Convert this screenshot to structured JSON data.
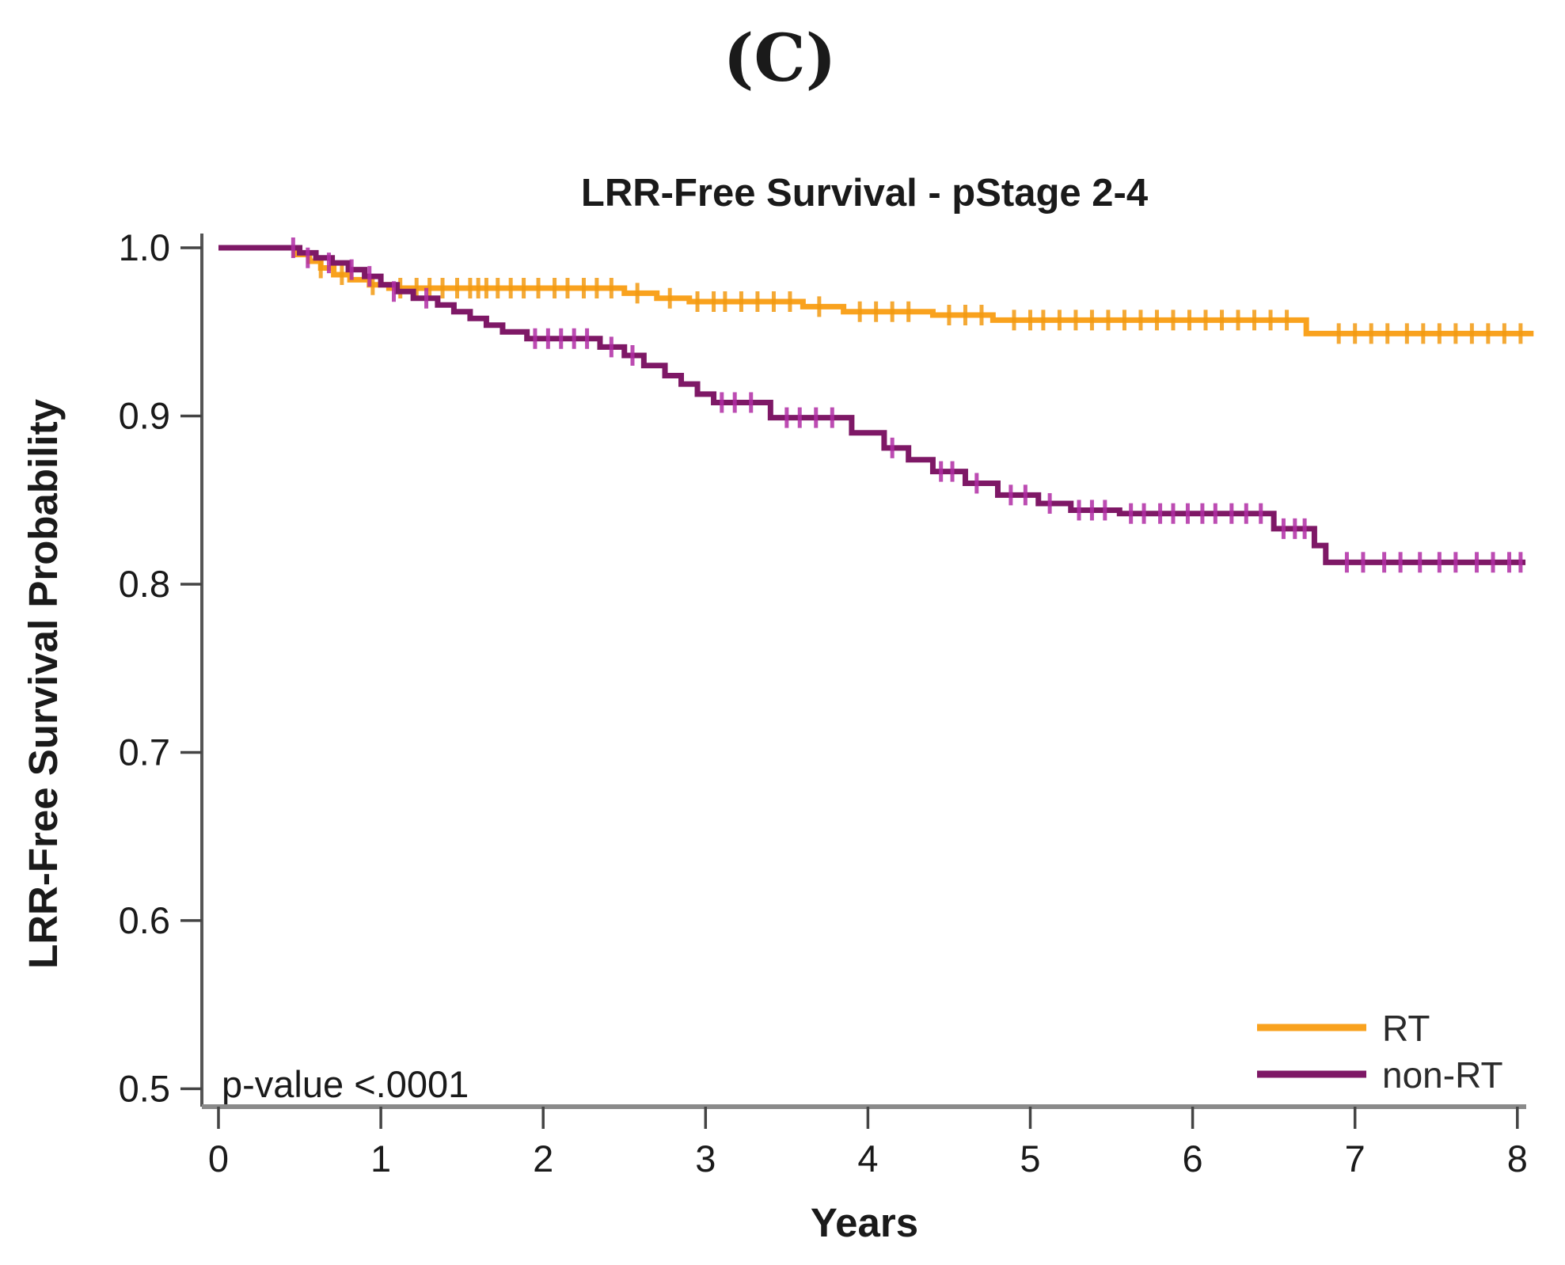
{
  "panel_label": "(C)",
  "annotation": {
    "p_value": "p-value <.0001"
  },
  "legend": [
    {
      "label": "RT",
      "color": "#F9A21E"
    },
    {
      "label": "non-RT",
      "color": "#7E1866"
    }
  ],
  "colors": {
    "rt_line": "#F9A21E",
    "rt_censor": "#F29A12",
    "nonrt_line": "#7E1866",
    "nonrt_censor": "#B02DA4",
    "axis_x": "#8a8a8a",
    "axis_y": "#555555",
    "tick": "#444444",
    "text": "#1a1a1a"
  },
  "chart_data": {
    "type": "line",
    "subtype": "kaplan-meier-step",
    "title": "LRR-Free Survival - pStage 2-4",
    "xlabel": "Years",
    "ylabel": "LRR-Free Survival Probability",
    "xlim": [
      0,
      8
    ],
    "ylim": [
      0.5,
      1.0
    ],
    "grid": false,
    "legend_position": "bottom-right-inside",
    "xticks": [
      0,
      1,
      2,
      3,
      4,
      5,
      6,
      7,
      8
    ],
    "yticks": [
      [
        "1.0",
        1.0
      ],
      [
        "0.9",
        0.9
      ],
      [
        "0.8",
        0.8
      ],
      [
        "0.7",
        0.7
      ],
      [
        "0.6",
        0.6
      ],
      [
        "0.5",
        0.5
      ]
    ],
    "series": [
      {
        "name": "RT",
        "color": "#F9A21E",
        "censor_color": "#F29A12",
        "start": 1.0,
        "end_t": 8.1,
        "steps": [
          [
            0.47,
            0.996
          ],
          [
            0.56,
            0.992
          ],
          [
            0.63,
            0.988
          ],
          [
            0.71,
            0.984
          ],
          [
            0.81,
            0.981
          ],
          [
            0.93,
            0.978
          ],
          [
            1.05,
            0.976
          ],
          [
            2.5,
            0.973
          ],
          [
            2.7,
            0.97
          ],
          [
            2.9,
            0.968
          ],
          [
            3.6,
            0.965
          ],
          [
            3.85,
            0.962
          ],
          [
            4.4,
            0.96
          ],
          [
            4.77,
            0.957
          ],
          [
            6.7,
            0.949
          ]
        ],
        "censors": [
          [
            0.63,
            0.988
          ],
          [
            0.76,
            0.984
          ],
          [
            0.95,
            0.978
          ],
          [
            1.12,
            0.976
          ],
          [
            1.22,
            0.976
          ],
          [
            1.3,
            0.976
          ],
          [
            1.38,
            0.976
          ],
          [
            1.47,
            0.976
          ],
          [
            1.55,
            0.976
          ],
          [
            1.6,
            0.976
          ],
          [
            1.65,
            0.976
          ],
          [
            1.72,
            0.976
          ],
          [
            1.8,
            0.976
          ],
          [
            1.88,
            0.976
          ],
          [
            1.97,
            0.976
          ],
          [
            2.07,
            0.976
          ],
          [
            2.15,
            0.976
          ],
          [
            2.25,
            0.976
          ],
          [
            2.33,
            0.976
          ],
          [
            2.42,
            0.976
          ],
          [
            2.58,
            0.973
          ],
          [
            2.78,
            0.97
          ],
          [
            2.95,
            0.968
          ],
          [
            3.05,
            0.968
          ],
          [
            3.12,
            0.968
          ],
          [
            3.22,
            0.968
          ],
          [
            3.32,
            0.968
          ],
          [
            3.42,
            0.968
          ],
          [
            3.52,
            0.968
          ],
          [
            3.7,
            0.965
          ],
          [
            3.95,
            0.962
          ],
          [
            4.05,
            0.962
          ],
          [
            4.15,
            0.962
          ],
          [
            4.25,
            0.962
          ],
          [
            4.5,
            0.96
          ],
          [
            4.6,
            0.96
          ],
          [
            4.7,
            0.96
          ],
          [
            4.9,
            0.957
          ],
          [
            5.0,
            0.957
          ],
          [
            5.08,
            0.957
          ],
          [
            5.18,
            0.957
          ],
          [
            5.28,
            0.957
          ],
          [
            5.38,
            0.957
          ],
          [
            5.48,
            0.957
          ],
          [
            5.58,
            0.957
          ],
          [
            5.68,
            0.957
          ],
          [
            5.78,
            0.957
          ],
          [
            5.88,
            0.957
          ],
          [
            5.98,
            0.957
          ],
          [
            6.08,
            0.957
          ],
          [
            6.18,
            0.957
          ],
          [
            6.28,
            0.957
          ],
          [
            6.38,
            0.957
          ],
          [
            6.48,
            0.957
          ],
          [
            6.58,
            0.957
          ],
          [
            6.9,
            0.949
          ],
          [
            7.0,
            0.949
          ],
          [
            7.1,
            0.949
          ],
          [
            7.2,
            0.949
          ],
          [
            7.32,
            0.949
          ],
          [
            7.42,
            0.949
          ],
          [
            7.52,
            0.949
          ],
          [
            7.62,
            0.949
          ],
          [
            7.72,
            0.949
          ],
          [
            7.82,
            0.949
          ],
          [
            7.92,
            0.949
          ],
          [
            8.02,
            0.949
          ]
        ]
      },
      {
        "name": "non-RT",
        "color": "#7E1866",
        "censor_color": "#B02DA4",
        "start": 1.0,
        "end_t": 8.05,
        "steps": [
          [
            0.5,
            0.997
          ],
          [
            0.6,
            0.994
          ],
          [
            0.7,
            0.991
          ],
          [
            0.8,
            0.987
          ],
          [
            0.9,
            0.983
          ],
          [
            1.0,
            0.978
          ],
          [
            1.1,
            0.974
          ],
          [
            1.2,
            0.97
          ],
          [
            1.35,
            0.966
          ],
          [
            1.45,
            0.962
          ],
          [
            1.55,
            0.958
          ],
          [
            1.65,
            0.954
          ],
          [
            1.75,
            0.95
          ],
          [
            1.9,
            0.946
          ],
          [
            2.35,
            0.941
          ],
          [
            2.5,
            0.936
          ],
          [
            2.62,
            0.93
          ],
          [
            2.75,
            0.924
          ],
          [
            2.85,
            0.919
          ],
          [
            2.95,
            0.913
          ],
          [
            3.05,
            0.908
          ],
          [
            3.4,
            0.899
          ],
          [
            3.9,
            0.89
          ],
          [
            4.1,
            0.881
          ],
          [
            4.25,
            0.874
          ],
          [
            4.4,
            0.867
          ],
          [
            4.6,
            0.86
          ],
          [
            4.8,
            0.853
          ],
          [
            5.05,
            0.848
          ],
          [
            5.25,
            0.844
          ],
          [
            5.55,
            0.842
          ],
          [
            6.5,
            0.833
          ],
          [
            6.75,
            0.823
          ],
          [
            6.82,
            0.813
          ]
        ],
        "censors": [
          [
            0.46,
            1.0
          ],
          [
            0.55,
            0.994
          ],
          [
            0.68,
            0.991
          ],
          [
            0.82,
            0.987
          ],
          [
            0.93,
            0.983
          ],
          [
            1.08,
            0.974
          ],
          [
            1.28,
            0.97
          ],
          [
            1.95,
            0.946
          ],
          [
            2.03,
            0.946
          ],
          [
            2.11,
            0.946
          ],
          [
            2.19,
            0.946
          ],
          [
            2.27,
            0.946
          ],
          [
            2.42,
            0.941
          ],
          [
            2.55,
            0.936
          ],
          [
            3.1,
            0.908
          ],
          [
            3.18,
            0.908
          ],
          [
            3.28,
            0.908
          ],
          [
            3.5,
            0.899
          ],
          [
            3.58,
            0.899
          ],
          [
            3.68,
            0.899
          ],
          [
            3.78,
            0.899
          ],
          [
            4.15,
            0.881
          ],
          [
            4.45,
            0.867
          ],
          [
            4.52,
            0.867
          ],
          [
            4.67,
            0.86
          ],
          [
            4.88,
            0.853
          ],
          [
            4.97,
            0.853
          ],
          [
            5.12,
            0.848
          ],
          [
            5.3,
            0.844
          ],
          [
            5.38,
            0.844
          ],
          [
            5.46,
            0.844
          ],
          [
            5.62,
            0.842
          ],
          [
            5.7,
            0.842
          ],
          [
            5.8,
            0.842
          ],
          [
            5.88,
            0.842
          ],
          [
            5.97,
            0.842
          ],
          [
            6.06,
            0.842
          ],
          [
            6.14,
            0.842
          ],
          [
            6.24,
            0.842
          ],
          [
            6.33,
            0.842
          ],
          [
            6.42,
            0.842
          ],
          [
            6.56,
            0.833
          ],
          [
            6.63,
            0.833
          ],
          [
            6.69,
            0.833
          ],
          [
            6.95,
            0.813
          ],
          [
            7.05,
            0.813
          ],
          [
            7.18,
            0.813
          ],
          [
            7.28,
            0.813
          ],
          [
            7.4,
            0.813
          ],
          [
            7.52,
            0.813
          ],
          [
            7.62,
            0.813
          ],
          [
            7.75,
            0.813
          ],
          [
            7.85,
            0.813
          ],
          [
            7.95,
            0.813
          ],
          [
            8.02,
            0.813
          ]
        ]
      }
    ]
  }
}
